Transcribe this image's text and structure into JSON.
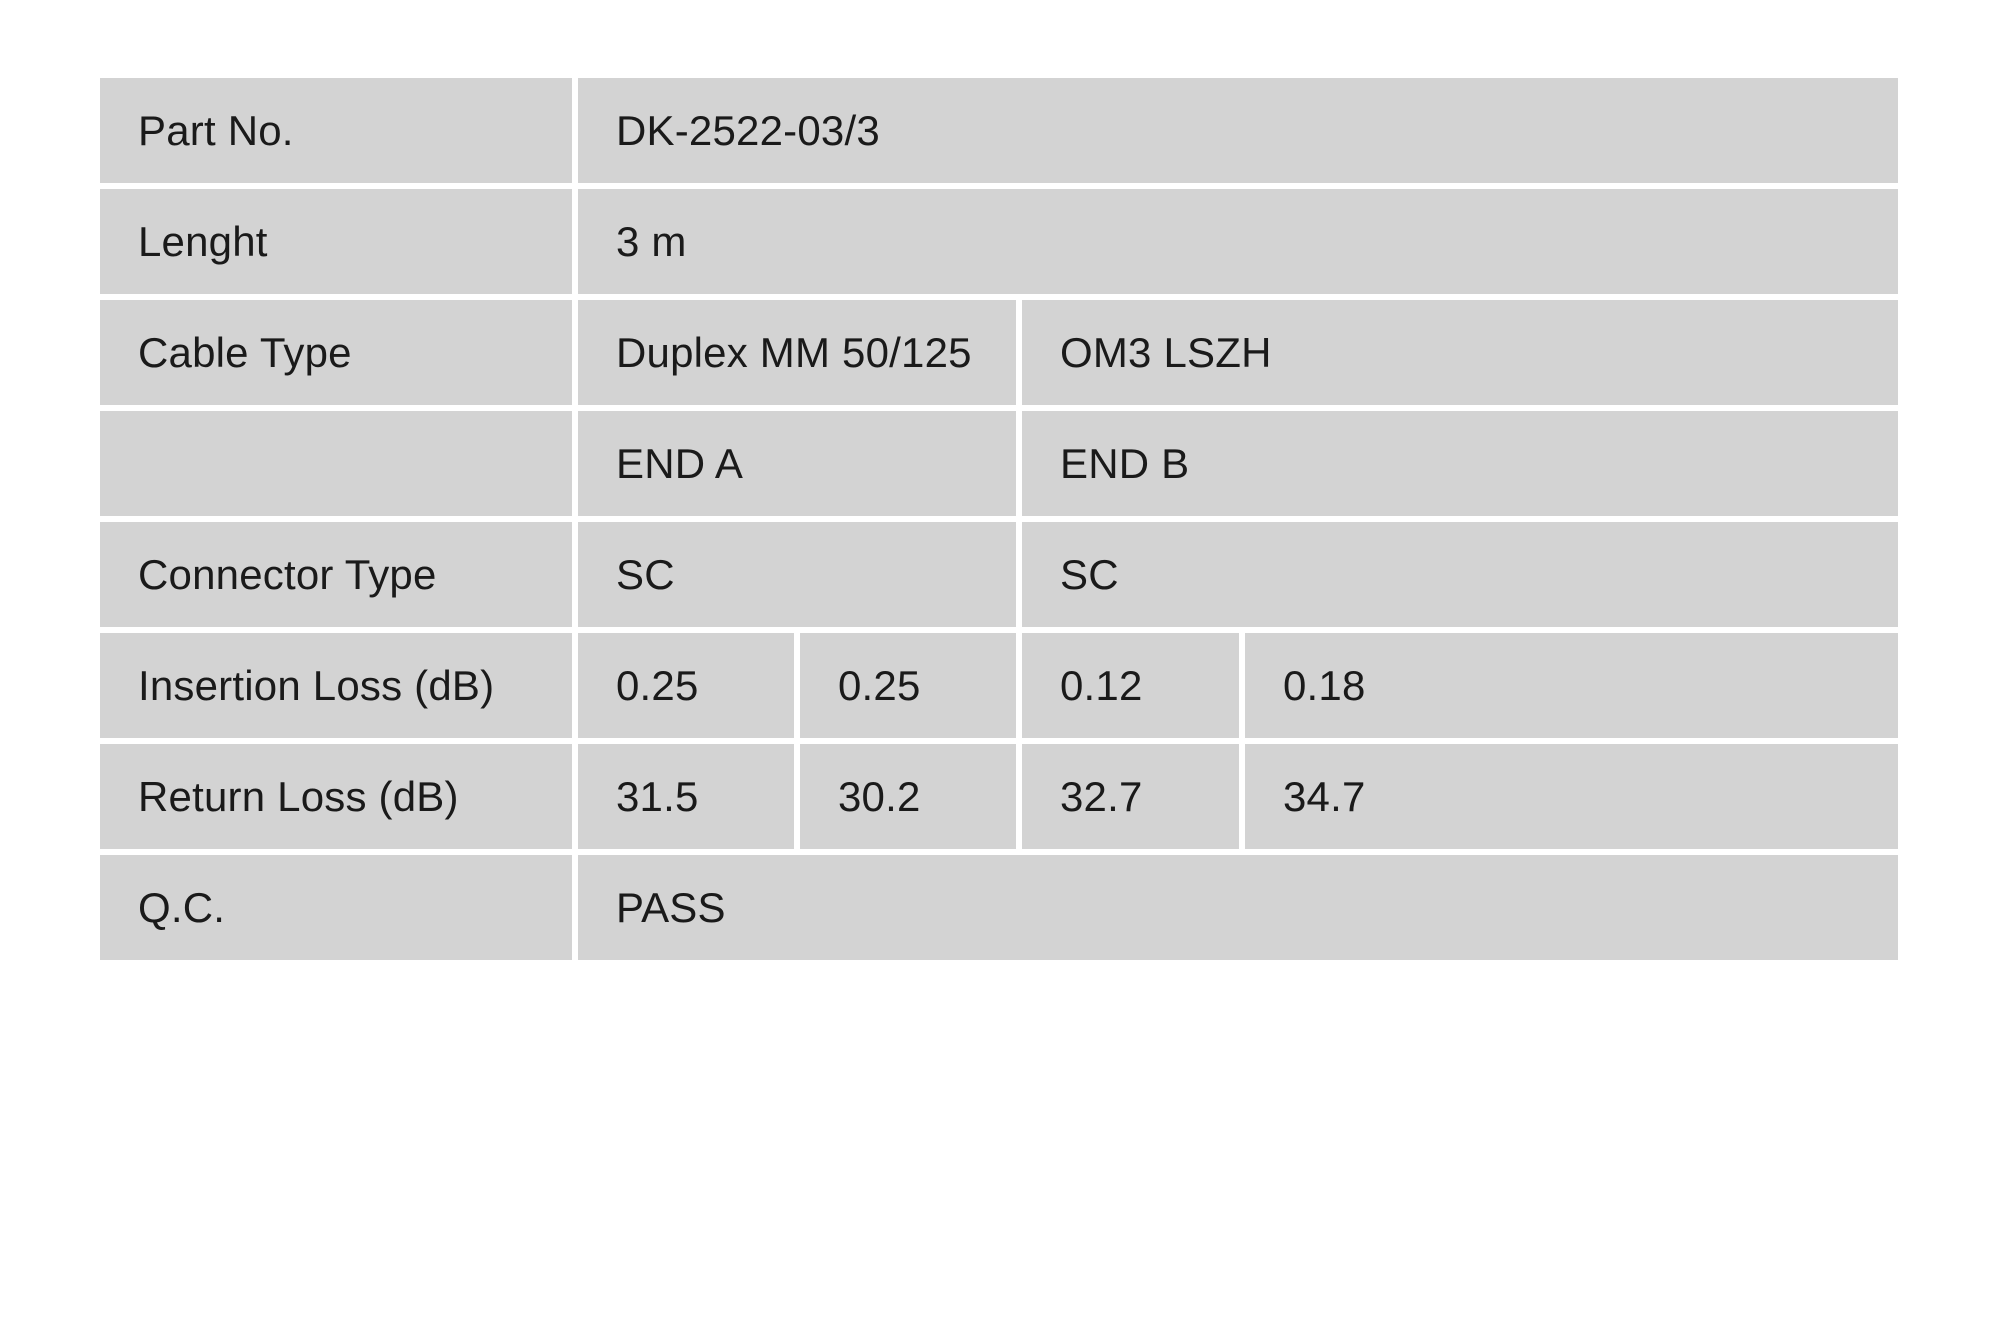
{
  "colors": {
    "cell_background": "#d3d3d3",
    "page_background": "#ffffff",
    "text": "#1a1a1a"
  },
  "table": {
    "part_no": {
      "label": "Part No.",
      "value": "DK-2522-03/3"
    },
    "length": {
      "label": "Lenght",
      "value": "3 m"
    },
    "cable_type": {
      "label": "Cable Type",
      "value_a": "Duplex MM 50/125",
      "value_b": "OM3 LSZH"
    },
    "ends": {
      "label": "",
      "end_a": "END A",
      "end_b": "END B"
    },
    "connector_type": {
      "label": "Connector Type",
      "end_a": "SC",
      "end_b": "SC"
    },
    "insertion_loss": {
      "label": "Insertion Loss (dB)",
      "values": [
        "0.25",
        "0.25",
        "0.12",
        "0.18"
      ]
    },
    "return_loss": {
      "label": "Return Loss (dB)",
      "values": [
        "31.5",
        "30.2",
        "32.7",
        "34.7"
      ]
    },
    "qc": {
      "label": "Q.C.",
      "value": "PASS"
    }
  }
}
